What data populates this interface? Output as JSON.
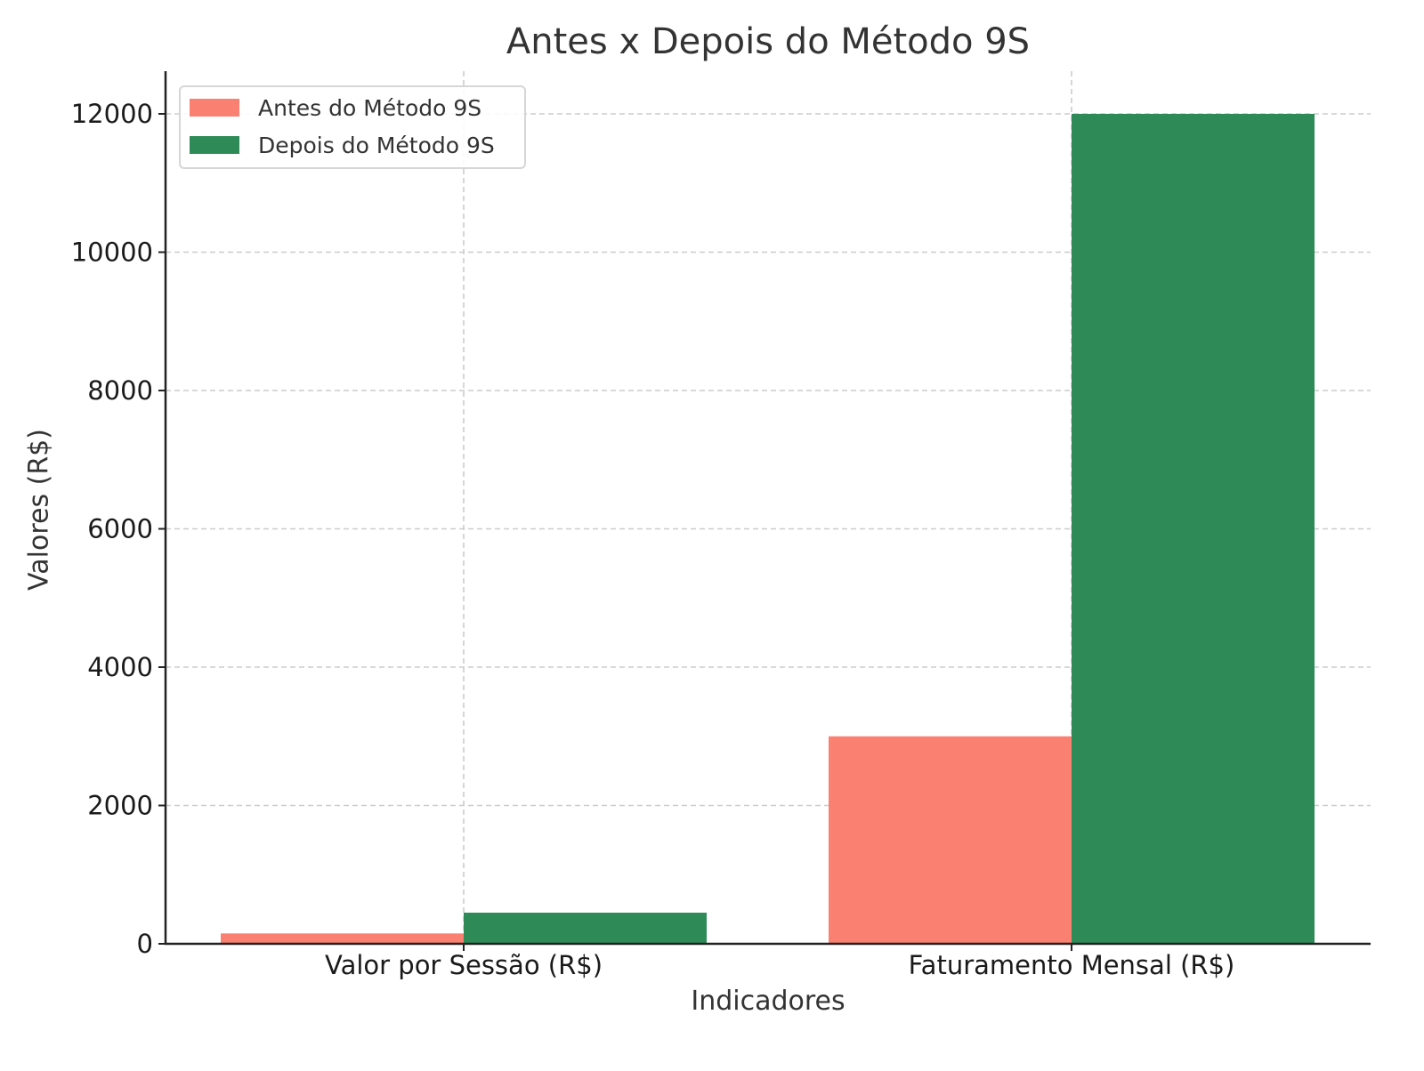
{
  "chart_data": {
    "type": "bar",
    "title": "Antes x Depois do Método 9S",
    "xlabel": "Indicadores",
    "ylabel": "Valores (R$)",
    "categories": [
      "Valor por Sessão (R$)",
      "Faturamento Mensal (R$)"
    ],
    "series": [
      {
        "name": "Antes do Método 9S",
        "values": [
          150,
          3000
        ],
        "color": "#FA8072"
      },
      {
        "name": "Depois do Método 9S",
        "values": [
          450,
          12000
        ],
        "color": "#2E8B57"
      }
    ],
    "ylim": [
      0,
      12600
    ],
    "yticks": [
      0,
      2000,
      4000,
      6000,
      8000,
      10000,
      12000
    ],
    "grid": true,
    "legend_position": "upper left"
  }
}
